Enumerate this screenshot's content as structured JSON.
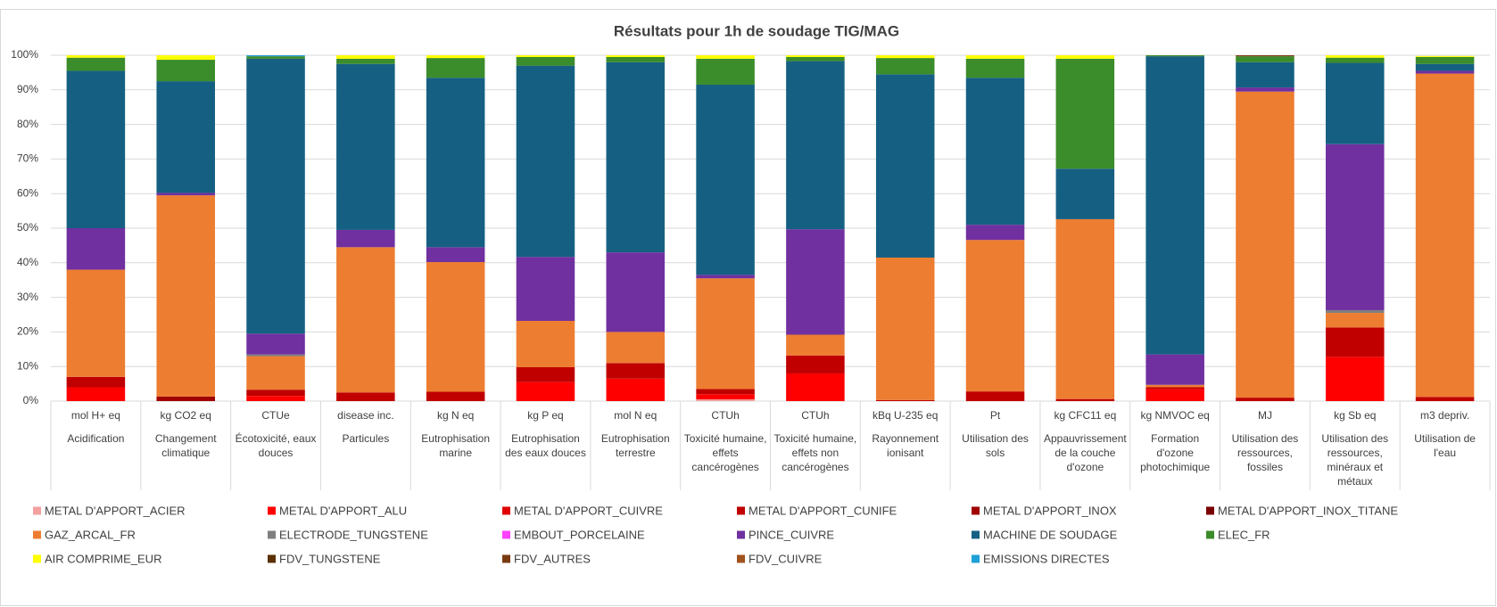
{
  "chart_data": {
    "type": "stacked_bar",
    "title": "Résultats pour 1h de soudage  TIG/MAG",
    "units": [
      "mol H+ eq",
      "kg CO2 eq",
      "CTUe",
      "disease inc.",
      "kg N eq",
      "kg P eq",
      "mol N eq",
      "CTUh",
      "CTUh",
      "kBq U-235 eq",
      "Pt",
      "kg CFC11 eq",
      "kg NMVOC eq",
      "MJ",
      "kg Sb eq",
      "m3 depriv."
    ],
    "categories": [
      "Acidification",
      "Changement climatique",
      "Écotoxicité, eaux douces",
      "Particules",
      "Eutrophisation marine",
      "Eutrophisation des eaux douces",
      "Eutrophisation terrestre",
      "Toxicité humaine, effets cancérogènes",
      "Toxicité humaine, effets non cancérogènes",
      "Rayonnement ionisant",
      "Utilisation des sols",
      "Appauvrissement de la couche d'ozone",
      "Formation d'ozone photochimique",
      "Utilisation des ressources, fossiles",
      "Utilisation des ressources, minéraux et métaux",
      "Utilisation de l'eau"
    ],
    "ylim": [
      0,
      100
    ],
    "yticks": [
      {
        "value": 0,
        "label": "0%"
      },
      {
        "value": 10,
        "label": "10%"
      },
      {
        "value": 20,
        "label": "20%"
      },
      {
        "value": 30,
        "label": "30%"
      },
      {
        "value": 40,
        "label": "40%"
      },
      {
        "value": 50,
        "label": "50%"
      },
      {
        "value": 60,
        "label": "60%"
      },
      {
        "value": 70,
        "label": "70%"
      },
      {
        "value": 80,
        "label": "80%"
      },
      {
        "value": 90,
        "label": "90%"
      },
      {
        "value": 100,
        "label": "100%"
      }
    ],
    "grid": true,
    "legend": "bottom",
    "series": [
      {
        "name": "METAL D'APPORT_ACIER",
        "color": "#f4a0a0",
        "values": [
          0,
          0,
          0,
          0,
          0,
          0,
          0,
          0.5,
          0,
          0,
          0,
          0,
          0,
          0,
          0,
          0
        ]
      },
      {
        "name": "METAL D'APPORT_ALU",
        "color": "#ff0000",
        "values": [
          4,
          0,
          1.5,
          0,
          0,
          5.5,
          6.5,
          1.5,
          8,
          0,
          0,
          0,
          3.5,
          0,
          12.8,
          0
        ]
      },
      {
        "name": "METAL D'APPORT_CUIVRE",
        "color": "#e00000",
        "values": [
          0,
          0,
          0,
          0,
          0,
          0,
          0,
          0,
          0,
          0,
          0,
          0,
          0,
          0,
          0,
          0
        ]
      },
      {
        "name": "METAL D'APPORT_CUNIFE",
        "color": "#c00000",
        "values": [
          3,
          0,
          1.8,
          2.5,
          2.7,
          4.3,
          4.5,
          1.5,
          5.2,
          0.3,
          2.8,
          0.6,
          0.5,
          1,
          8.5,
          1.2
        ]
      },
      {
        "name": "METAL D'APPORT_INOX",
        "color": "#a00000",
        "values": [
          0,
          1.3,
          0,
          0,
          0,
          0,
          0,
          0,
          0,
          0,
          0,
          0,
          0,
          0,
          0,
          0
        ]
      },
      {
        "name": "METAL D'APPORT_INOX_TITANE",
        "color": "#7a0000",
        "values": [
          0,
          0,
          0,
          0,
          0,
          0,
          0,
          0,
          0,
          0,
          0,
          0,
          0,
          0,
          0,
          0
        ]
      },
      {
        "name": "GAZ_ARCAL_FR",
        "color": "#ed7d31",
        "values": [
          31,
          58.2,
          9.7,
          42,
          37.5,
          13.4,
          9,
          32,
          6,
          41.2,
          43.8,
          52,
          0.7,
          88.5,
          4.2,
          93.5
        ]
      },
      {
        "name": "ELECTRODE_TUNGSTENE",
        "color": "#7f7f7f",
        "values": [
          0,
          0,
          0.5,
          0,
          0,
          0,
          0,
          0,
          0,
          0,
          0,
          0,
          0,
          0,
          0.8,
          0
        ]
      },
      {
        "name": "EMBOUT_PORCELAINE",
        "color": "#ff40ff",
        "values": [
          0,
          0,
          0,
          0,
          0,
          0,
          0,
          0,
          0,
          0,
          0,
          0,
          0,
          0,
          0,
          0
        ]
      },
      {
        "name": "PINCE_CUIVRE",
        "color": "#7030a0",
        "values": [
          12,
          0.7,
          6,
          5,
          4.3,
          18.5,
          23,
          1,
          30.5,
          0,
          4.4,
          0,
          8.8,
          1.2,
          48,
          0.8
        ]
      },
      {
        "name": "MACHINE DE SOUDAGE",
        "color": "#156082",
        "values": [
          45.5,
          32.3,
          79.5,
          48,
          49,
          55.3,
          55,
          55,
          48.6,
          53,
          42.5,
          14.6,
          86.2,
          7.3,
          23.5,
          2
        ]
      },
      {
        "name": "ELEC_FR",
        "color": "#3b8c2a",
        "values": [
          3.8,
          6.2,
          0.7,
          1.5,
          5.7,
          2.5,
          1.5,
          7.5,
          1.2,
          4.7,
          5.5,
          31.8,
          0.3,
          1.7,
          1.5,
          2
        ]
      },
      {
        "name": "AIR COMPRIME_EUR",
        "color": "#ffff00",
        "values": [
          0.7,
          1.3,
          0,
          1,
          0.8,
          0.5,
          0.5,
          1,
          0.5,
          0.8,
          1,
          1,
          0,
          0,
          0.7,
          0.3
        ]
      },
      {
        "name": "FDV_TUNGSTENE",
        "color": "#5a3000",
        "values": [
          0,
          0,
          0,
          0,
          0,
          0,
          0,
          0,
          0,
          0,
          0,
          0,
          0,
          0,
          0,
          0
        ]
      },
      {
        "name": "FDV_AUTRES",
        "color": "#7a3a10",
        "values": [
          0,
          0,
          0,
          0,
          0,
          0,
          0,
          0,
          0,
          0,
          0,
          0,
          0,
          0.3,
          0,
          0
        ]
      },
      {
        "name": "FDV_CUIVRE",
        "color": "#a0521c",
        "values": [
          0,
          0,
          0,
          0,
          0,
          0,
          0,
          0,
          0,
          0,
          0,
          0,
          0,
          0,
          0,
          0
        ]
      },
      {
        "name": "EMISSIONS DIRECTES",
        "color": "#1ea0d8",
        "values": [
          0,
          0,
          0.3,
          0,
          0,
          0,
          0,
          0,
          0,
          0,
          0,
          0,
          0,
          0,
          0,
          0
        ]
      }
    ]
  }
}
